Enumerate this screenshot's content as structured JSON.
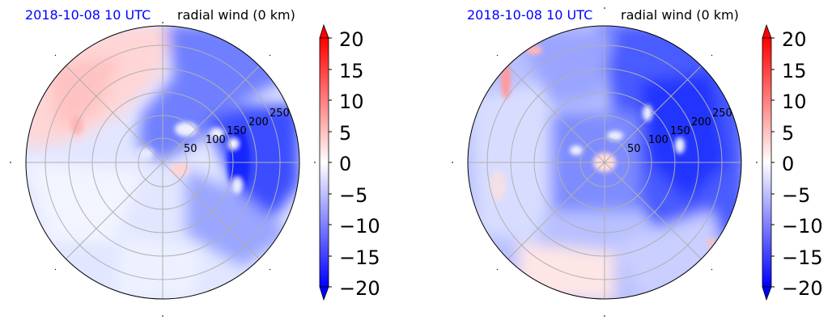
{
  "chart_data": [
    {
      "type": "heatmap",
      "projection": "polar",
      "title_left": "2018-10-08 10 UTC",
      "title_right": "radial wind (0 km)",
      "radial_ticks": [
        "50",
        "100",
        "150",
        "200",
        "250"
      ],
      "radial_values": [
        50,
        100,
        150,
        200,
        250
      ],
      "rlim": [
        0,
        280
      ],
      "theta_gridlines_deg": [
        0,
        45,
        90,
        135,
        180,
        225,
        270,
        315
      ],
      "grid": true,
      "colorbar": {
        "cmap": "bwr",
        "vmin": -20,
        "vmax": 20,
        "extend": "both",
        "ticks": [
          "20",
          "15",
          "10",
          "5",
          "0",
          "−5",
          "−10",
          "−15",
          "−20"
        ],
        "tick_values": [
          20,
          15,
          10,
          5,
          0,
          -5,
          -10,
          -15,
          -20
        ]
      },
      "field_regions": [
        {
          "region": "northwest quadrant",
          "approx_value": 4
        },
        {
          "region": "east-northeast rainband",
          "approx_value": -17
        },
        {
          "region": "eastern outer band",
          "approx_value": -12
        },
        {
          "region": "southeast",
          "approx_value": -8
        },
        {
          "region": "south and west",
          "approx_value": -2
        },
        {
          "region": "core",
          "approx_value": 2
        }
      ]
    },
    {
      "type": "heatmap",
      "projection": "polar",
      "title_left": "2018-10-08 10 UTC",
      "title_right": "radial wind (0 km)",
      "radial_ticks": [
        "50",
        "100",
        "150",
        "200",
        "250"
      ],
      "radial_values": [
        50,
        100,
        150,
        200,
        250
      ],
      "rlim": [
        0,
        280
      ],
      "theta_gridlines_deg": [
        0,
        45,
        90,
        135,
        180,
        225,
        270,
        315
      ],
      "grid": true,
      "colorbar": {
        "cmap": "bwr",
        "vmin": -20,
        "vmax": 20,
        "extend": "both",
        "ticks": [
          "20",
          "15",
          "10",
          "5",
          "0",
          "−5",
          "−10",
          "−15",
          "−20"
        ],
        "tick_values": [
          20,
          15,
          10,
          5,
          0,
          -5,
          -10,
          -15,
          -20
        ]
      },
      "field_regions": [
        {
          "region": "north",
          "approx_value": -15
        },
        {
          "region": "east rainbands",
          "approx_value": -16
        },
        {
          "region": "northwest edge",
          "approx_value": 6
        },
        {
          "region": "southwest",
          "approx_value": -3
        },
        {
          "region": "south edge",
          "approx_value": 2
        },
        {
          "region": "core",
          "approx_value": 3
        }
      ]
    }
  ]
}
